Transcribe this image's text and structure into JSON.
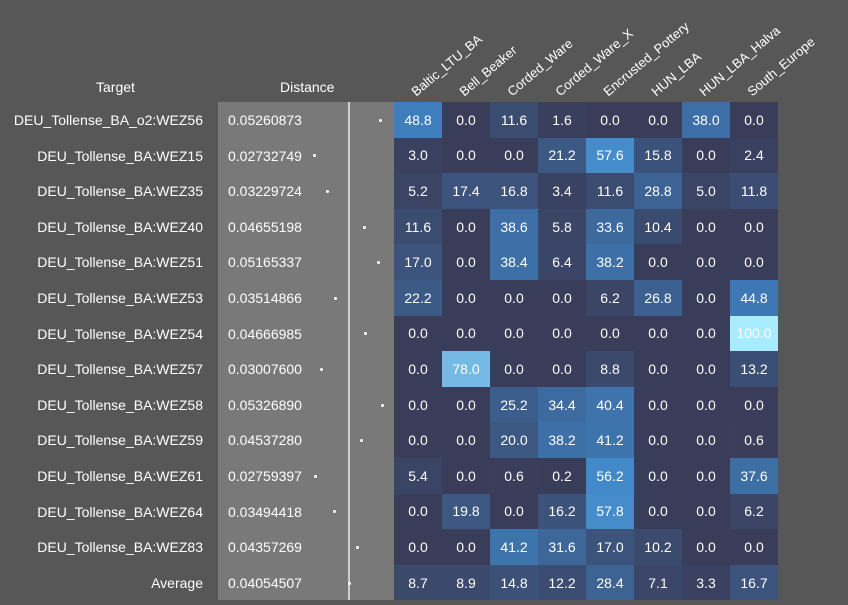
{
  "headers": {
    "target": "Target",
    "distance": "Distance"
  },
  "chart_data": {
    "type": "heatmap",
    "columns": [
      "Baltic_LTU_BA",
      "Bell_Beaker",
      "Corded_Ware",
      "Corded_Ware_X",
      "Encrusted_Pottery",
      "HUN_LBA",
      "HUN_LBA_Halva",
      "South_Europe"
    ],
    "rows": [
      {
        "target": "DEU_Tollense_BA_o2:WEZ56",
        "distance": "0.05260873",
        "values": [
          "48.8",
          "0.0",
          "11.6",
          "1.6",
          "0.0",
          "0.0",
          "38.0",
          "0.0"
        ]
      },
      {
        "target": "DEU_Tollense_BA:WEZ15",
        "distance": "0.02732749",
        "values": [
          "3.0",
          "0.0",
          "0.0",
          "21.2",
          "57.6",
          "15.8",
          "0.0",
          "2.4"
        ]
      },
      {
        "target": "DEU_Tollense_BA:WEZ35",
        "distance": "0.03229724",
        "values": [
          "5.2",
          "17.4",
          "16.8",
          "3.4",
          "11.6",
          "28.8",
          "5.0",
          "11.8"
        ]
      },
      {
        "target": "DEU_Tollense_BA:WEZ40",
        "distance": "0.04655198",
        "values": [
          "11.6",
          "0.0",
          "38.6",
          "5.8",
          "33.6",
          "10.4",
          "0.0",
          "0.0"
        ]
      },
      {
        "target": "DEU_Tollense_BA:WEZ51",
        "distance": "0.05165337",
        "values": [
          "17.0",
          "0.0",
          "38.4",
          "6.4",
          "38.2",
          "0.0",
          "0.0",
          "0.0"
        ]
      },
      {
        "target": "DEU_Tollense_BA:WEZ53",
        "distance": "0.03514866",
        "values": [
          "22.2",
          "0.0",
          "0.0",
          "0.0",
          "6.2",
          "26.8",
          "0.0",
          "44.8"
        ]
      },
      {
        "target": "DEU_Tollense_BA:WEZ54",
        "distance": "0.04666985",
        "values": [
          "0.0",
          "0.0",
          "0.0",
          "0.0",
          "0.0",
          "0.0",
          "0.0",
          "100.0"
        ]
      },
      {
        "target": "DEU_Tollense_BA:WEZ57",
        "distance": "0.03007600",
        "values": [
          "0.0",
          "78.0",
          "0.0",
          "0.0",
          "8.8",
          "0.0",
          "0.0",
          "13.2"
        ]
      },
      {
        "target": "DEU_Tollense_BA:WEZ58",
        "distance": "0.05326890",
        "values": [
          "0.0",
          "0.0",
          "25.2",
          "34.4",
          "40.4",
          "0.0",
          "0.0",
          "0.0"
        ]
      },
      {
        "target": "DEU_Tollense_BA:WEZ59",
        "distance": "0.04537280",
        "values": [
          "0.0",
          "0.0",
          "20.0",
          "38.2",
          "41.2",
          "0.0",
          "0.0",
          "0.6"
        ]
      },
      {
        "target": "DEU_Tollense_BA:WEZ61",
        "distance": "0.02759397",
        "values": [
          "5.4",
          "0.0",
          "0.6",
          "0.2",
          "56.2",
          "0.0",
          "0.0",
          "37.6"
        ]
      },
      {
        "target": "DEU_Tollense_BA:WEZ64",
        "distance": "0.03494418",
        "values": [
          "0.0",
          "19.8",
          "0.0",
          "16.2",
          "57.8",
          "0.0",
          "0.0",
          "6.2"
        ]
      },
      {
        "target": "DEU_Tollense_BA:WEZ83",
        "distance": "0.04357269",
        "values": [
          "0.0",
          "0.0",
          "41.2",
          "31.6",
          "17.0",
          "10.2",
          "0.0",
          "0.0"
        ]
      },
      {
        "target": "Average",
        "distance": "0.04054507",
        "values": [
          "8.7",
          "8.9",
          "14.8",
          "12.2",
          "28.4",
          "7.1",
          "3.3",
          "16.7"
        ]
      }
    ],
    "color_scale": {
      "low": "#3a3d5a",
      "mid": "#3f86c8",
      "high": "#a8ecff"
    }
  }
}
